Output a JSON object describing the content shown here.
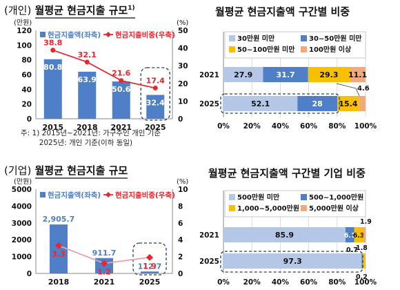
{
  "panels": {
    "p1": {
      "section": "(개인)",
      "title": "월평균 현금지출 규모",
      "title_sup": "1)",
      "left_unit": "(만원)",
      "right_unit": "(%)",
      "legend_bar": "현금지출액(좌축)",
      "legend_line": "현금지출비중(우축)"
    },
    "p2": {
      "title": "월평균 현금지출액 구간별 비중",
      "callout": "4.6"
    },
    "p3": {
      "section": "(기업)",
      "title": "월평균 현금지출 규모",
      "left_unit": "(만원)",
      "right_unit": "(%)",
      "legend_bar": "현금지출액(좌축)",
      "legend_line": "현금지출비중(우축)"
    },
    "p4": {
      "title": "월평균 현금지출액 구간별 기업 비중",
      "callout_2021": "1.9",
      "callout_2025_a": "0.7",
      "callout_2025_b": "1.8",
      "callout_2025_c": "0.2"
    }
  },
  "note": {
    "line1": "주: 1) 2015년~2021년: 가구주인 개인 기준",
    "line2": "        2025년: 개인 기준(이하 동일)"
  },
  "colors": {
    "bar_blue": "#4f7fc7",
    "line_red": "#e8262b",
    "seg1": "#b4c7e7",
    "seg2": "#4f7fc7",
    "seg3": "#f8c000",
    "seg4": "#f4a97b",
    "dash_navy": "#1f3b7a"
  },
  "chart_data": [
    {
      "type": "bar",
      "categories": [
        "2015",
        "2018",
        "2021",
        "2025"
      ],
      "series": [
        {
          "name": "현금지출액(좌축)",
          "values": [
            80.8,
            63.9,
            50.6,
            32.4
          ]
        },
        {
          "name": "현금지출비중(우축)",
          "type": "line",
          "axis": "right",
          "values": [
            38.8,
            32.1,
            21.6,
            17.4
          ]
        }
      ],
      "y_ticks": [
        "0",
        "20",
        "40",
        "60",
        "80",
        "100",
        "120"
      ],
      "y2_ticks": [
        "0",
        "10",
        "20",
        "30",
        "40",
        "50"
      ],
      "ylim": [
        0,
        120
      ],
      "y2lim": [
        0,
        50
      ],
      "highlight_category": "2025",
      "legend": "top"
    },
    {
      "type": "bar",
      "orientation": "horizontal-stacked-percent",
      "categories": [
        "2021",
        "2025"
      ],
      "series": [
        {
          "name": "30만원 미만",
          "values": [
            27.9,
            52.1
          ]
        },
        {
          "name": "30~50만원 미만",
          "values": [
            31.7,
            28.0
          ]
        },
        {
          "name": "50~100만원 미만",
          "values": [
            29.3,
            15.4
          ]
        },
        {
          "name": "100만원 이상",
          "values": [
            11.1,
            4.6
          ]
        }
      ],
      "x_ticks": [
        "0%",
        "20%",
        "40%",
        "60%",
        "80%",
        "100%"
      ],
      "xlim": [
        0,
        100
      ],
      "legend": "top"
    },
    {
      "type": "bar",
      "categories": [
        "2018",
        "2021",
        "2025"
      ],
      "series": [
        {
          "name": "현금지출액(좌축)",
          "values": [
            2905.7,
            911.7,
            112.7
          ]
        },
        {
          "name": "현금지출비중(우축)",
          "type": "line",
          "axis": "right",
          "values": [
            3.3,
            1.2,
            1.9
          ]
        }
      ],
      "bar_labels": [
        "2,905.7",
        "911.7",
        "112.7"
      ],
      "line_labels": [
        "3.3",
        "1.2",
        "1.9"
      ],
      "y_ticks": [
        "0",
        "1000",
        "2000",
        "3000",
        "4000",
        "5000"
      ],
      "y2_ticks": [
        "0",
        "2",
        "4",
        "6",
        "8",
        "10"
      ],
      "ylim": [
        0,
        5000
      ],
      "y2lim": [
        0,
        10
      ],
      "highlight_category": "2025",
      "legend": "top"
    },
    {
      "type": "bar",
      "orientation": "horizontal-stacked-percent",
      "categories": [
        "2021",
        "2025"
      ],
      "series": [
        {
          "name": "500만원 미만",
          "values": [
            85.9,
            97.3
          ]
        },
        {
          "name": "500~1,000만원",
          "values": [
            6.1,
            0.7
          ]
        },
        {
          "name": "1,000~5,000만원",
          "values": [
            6.3,
            1.8
          ]
        },
        {
          "name": "5,000만원 이상",
          "values": [
            1.9,
            0.2
          ]
        }
      ],
      "segment_labels": [
        [
          "85.9",
          "6.1",
          "6.3",
          ""
        ],
        [
          "97.3",
          "",
          "",
          ""
        ]
      ],
      "x_ticks": [
        "0%",
        "20%",
        "40%",
        "60%",
        "80%",
        "100%"
      ],
      "xlim": [
        0,
        100
      ],
      "legend": "top"
    }
  ]
}
